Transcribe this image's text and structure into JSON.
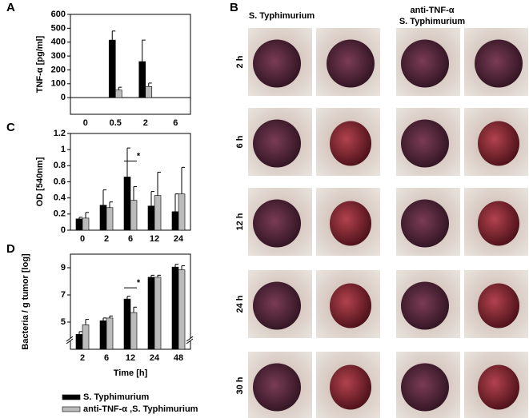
{
  "panel_labels": [
    "A",
    "B",
    "C",
    "D"
  ],
  "photos": {
    "column_headers": [
      [
        "S. Typhimurium"
      ],
      [
        "anti-TNF-α",
        "S. Typhimurium"
      ]
    ],
    "row_labels": [
      "2 h",
      "6 h",
      "12 h",
      "24 h",
      "30 h"
    ]
  },
  "chart_data": [
    {
      "type": "bar",
      "ylabel": "TNF-α [pg/ml]",
      "categories": [
        "0",
        "0.5",
        "2",
        "6"
      ],
      "series": [
        {
          "color": "#000000",
          "values": [
            null,
            415,
            260,
            null
          ],
          "errors": [
            null,
            65,
            155,
            null
          ]
        },
        {
          "color": "#bbbbbb",
          "values": [
            null,
            55,
            80,
            null
          ],
          "errors": [
            null,
            20,
            25,
            null
          ]
        }
      ],
      "ylim": [
        -120,
        600
      ],
      "yticks": [
        0,
        100,
        200,
        300,
        400,
        500,
        600
      ]
    },
    {
      "type": "bar",
      "ylabel": "OD [540nm]",
      "categories": [
        "0",
        "2",
        "6",
        "12",
        "24"
      ],
      "series": [
        {
          "color": "#000000",
          "values": [
            0.14,
            0.31,
            0.66,
            0.3,
            0.23
          ],
          "errors": [
            0.02,
            0.19,
            0.36,
            0.18,
            0.22
          ]
        },
        {
          "color": "#bbbbbb",
          "values": [
            0.15,
            0.28,
            0.37,
            0.43,
            0.45
          ],
          "errors": [
            0.07,
            0.07,
            0.17,
            0.29,
            0.33
          ]
        }
      ],
      "ylim": [
        0,
        1.2
      ],
      "yticks": [
        0,
        0.2,
        0.4,
        0.6,
        0.8,
        1,
        1.2
      ],
      "annotations": [
        {
          "text": "*",
          "category": 2
        }
      ]
    },
    {
      "type": "bar",
      "ylabel": "Bacteria / g tumor [log]",
      "xlabel": "Time [h]",
      "categories": [
        "2",
        "6",
        "12",
        "24",
        "48"
      ],
      "series": [
        {
          "name": "S. Typhimurium",
          "color": "#000000",
          "values": [
            4.1,
            5.1,
            6.7,
            8.3,
            9.05
          ],
          "errors": [
            0.2,
            0.2,
            0.2,
            0.15,
            0.2
          ]
        },
        {
          "name": "anti-TNF-α ,S. Typhimurium",
          "color": "#bbbbbb",
          "values": [
            4.8,
            5.3,
            5.7,
            8.3,
            8.85
          ],
          "errors": [
            0.4,
            0.15,
            0.4,
            0.15,
            0.3
          ]
        }
      ],
      "ylim": [
        3,
        10
      ],
      "yticks": [
        5,
        7,
        9
      ],
      "annotations": [
        {
          "text": "*",
          "category": 2
        }
      ]
    }
  ]
}
